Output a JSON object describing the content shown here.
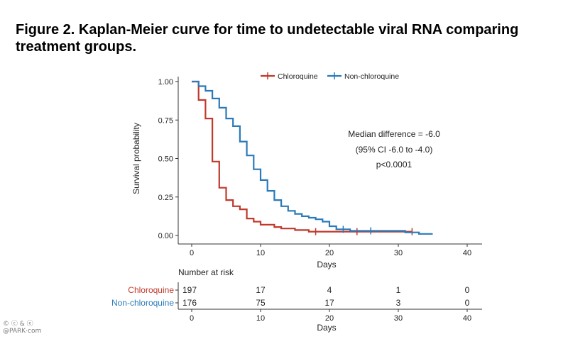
{
  "figure": {
    "title": "Figure 2. Kaplan-Meier curve for time to undetectable viral RNA comparing treatment groups."
  },
  "watermark": {
    "line1": "© ⓒ & ⓔ",
    "line2": "@PARK·com"
  },
  "chart_data": {
    "type": "line",
    "subtype": "kaplan-meier-step",
    "xlabel": "Days",
    "ylabel": "Survival probability",
    "xlim": [
      -2,
      42
    ],
    "ylim": [
      0,
      1.03
    ],
    "xticks": [
      0,
      10,
      20,
      30,
      40
    ],
    "yticks": [
      0,
      0.25,
      0.5,
      0.75,
      1.0
    ],
    "ytick_labels": [
      "0.00",
      "0.25",
      "0.50",
      "0.75",
      "1.00"
    ],
    "legend_placement": "top-center",
    "grid": false,
    "annotation": [
      "Median difference = -6.0",
      "(95% CI -6.0 to -4.0)",
      "p<0.0001"
    ],
    "series": [
      {
        "name": "Chloroquine",
        "color": "#c0392b",
        "points": [
          [
            0,
            1.0
          ],
          [
            1,
            1.0
          ],
          [
            1,
            0.88
          ],
          [
            2,
            0.88
          ],
          [
            2,
            0.76
          ],
          [
            3,
            0.76
          ],
          [
            3,
            0.48
          ],
          [
            4,
            0.48
          ],
          [
            4,
            0.31
          ],
          [
            5,
            0.31
          ],
          [
            5,
            0.23
          ],
          [
            6,
            0.23
          ],
          [
            6,
            0.19
          ],
          [
            7,
            0.19
          ],
          [
            7,
            0.17
          ],
          [
            8,
            0.17
          ],
          [
            8,
            0.11
          ],
          [
            9,
            0.11
          ],
          [
            9,
            0.09
          ],
          [
            10,
            0.09
          ],
          [
            10,
            0.07
          ],
          [
            12,
            0.07
          ],
          [
            12,
            0.055
          ],
          [
            13,
            0.055
          ],
          [
            13,
            0.045
          ],
          [
            15,
            0.045
          ],
          [
            15,
            0.035
          ],
          [
            17,
            0.035
          ],
          [
            17,
            0.025
          ],
          [
            32,
            0.025
          ]
        ],
        "censor_marks": [
          [
            18,
            0.025
          ],
          [
            24,
            0.025
          ],
          [
            32,
            0.025
          ]
        ]
      },
      {
        "name": "Non-chloroquine",
        "color": "#2a7ab9",
        "points": [
          [
            0,
            1.0
          ],
          [
            1,
            1.0
          ],
          [
            1,
            0.97
          ],
          [
            2,
            0.97
          ],
          [
            2,
            0.94
          ],
          [
            3,
            0.94
          ],
          [
            3,
            0.89
          ],
          [
            4,
            0.89
          ],
          [
            4,
            0.83
          ],
          [
            5,
            0.83
          ],
          [
            5,
            0.76
          ],
          [
            6,
            0.76
          ],
          [
            6,
            0.71
          ],
          [
            7,
            0.71
          ],
          [
            7,
            0.61
          ],
          [
            8,
            0.61
          ],
          [
            8,
            0.52
          ],
          [
            9,
            0.52
          ],
          [
            9,
            0.43
          ],
          [
            10,
            0.43
          ],
          [
            10,
            0.36
          ],
          [
            11,
            0.36
          ],
          [
            11,
            0.29
          ],
          [
            12,
            0.29
          ],
          [
            12,
            0.23
          ],
          [
            13,
            0.23
          ],
          [
            13,
            0.19
          ],
          [
            14,
            0.19
          ],
          [
            14,
            0.16
          ],
          [
            15,
            0.16
          ],
          [
            15,
            0.14
          ],
          [
            16,
            0.14
          ],
          [
            16,
            0.125
          ],
          [
            17,
            0.125
          ],
          [
            17,
            0.115
          ],
          [
            18,
            0.115
          ],
          [
            18,
            0.105
          ],
          [
            19,
            0.105
          ],
          [
            19,
            0.09
          ],
          [
            20,
            0.09
          ],
          [
            20,
            0.06
          ],
          [
            21,
            0.06
          ],
          [
            21,
            0.04
          ],
          [
            23,
            0.04
          ],
          [
            23,
            0.03
          ],
          [
            31,
            0.03
          ],
          [
            31,
            0.02
          ],
          [
            33,
            0.02
          ],
          [
            33,
            0.01
          ],
          [
            35,
            0.01
          ]
        ],
        "censor_marks": [
          [
            22,
            0.04
          ],
          [
            26,
            0.03
          ]
        ]
      }
    ],
    "risk_table": {
      "title": "Number at risk",
      "xlabel": "Days",
      "times": [
        0,
        10,
        20,
        30,
        40
      ],
      "rows": [
        {
          "name": "Chloroquine",
          "color": "#c0392b",
          "values": [
            "197",
            "17",
            "4",
            "1",
            "0"
          ]
        },
        {
          "name": "Non-chloroquine",
          "color": "#2a7ab9",
          "values": [
            "176",
            "75",
            "17",
            "3",
            "0"
          ]
        }
      ]
    }
  }
}
